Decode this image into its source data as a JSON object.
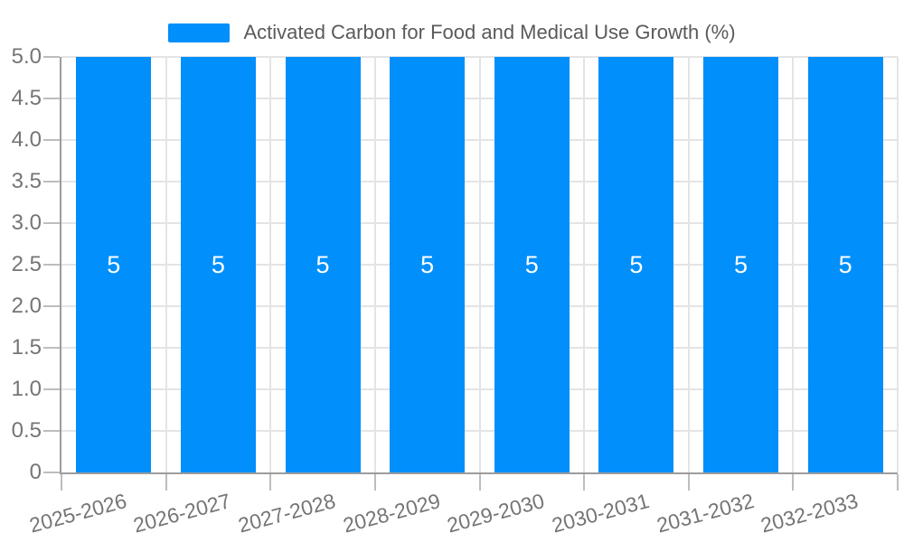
{
  "legend": {
    "label": "Activated Carbon for Food and Medical Use Growth (%)"
  },
  "chart_data": {
    "type": "bar",
    "title": "Activated Carbon for Food and Medical Use Growth (%)",
    "categories": [
      "2025-2026",
      "2026-2027",
      "2027-2028",
      "2028-2029",
      "2029-2030",
      "2030-2031",
      "2031-2032",
      "2032-2033"
    ],
    "series": [
      {
        "name": "Activated Carbon for Food and Medical Use Growth (%)",
        "values": [
          5,
          5,
          5,
          5,
          5,
          5,
          5,
          5
        ],
        "color": "#008FFB"
      }
    ],
    "value_labels": [
      "5",
      "5",
      "5",
      "5",
      "5",
      "5",
      "5",
      "5"
    ],
    "xlabel": "",
    "ylabel": "",
    "ylim": [
      0,
      5
    ],
    "ytick_step": 0.5,
    "ytick_labels": [
      "0",
      "0.5",
      "1.0",
      "1.5",
      "2.0",
      "2.5",
      "3.0",
      "3.5",
      "4.0",
      "4.5",
      "5.0"
    ],
    "grid": true,
    "vertical_gridlines": true,
    "legend_position": "top",
    "x_label_rotation_deg": -15
  },
  "colors": {
    "bar": "#008FFB",
    "axis_line": "#9c9c9c",
    "gridline": "#e4e4e4",
    "tick": "#bdbdbd",
    "axis_label_text": "#757575",
    "legend_text": "#5a5a5a",
    "value_label_text": "#ffffff",
    "background": "#ffffff"
  }
}
